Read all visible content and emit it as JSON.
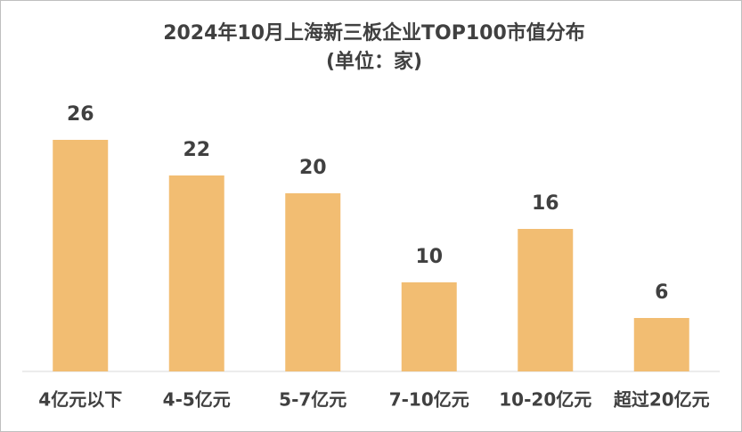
{
  "chart_data": {
    "type": "bar",
    "title": "2024年10月上海新三板企业TOP100市值分布",
    "subtitle": "(单位：家)",
    "categories": [
      "4亿元以下",
      "4-5亿元",
      "5-7亿元",
      "7-10亿元",
      "10-20亿元",
      "超过20亿元"
    ],
    "values": [
      26,
      22,
      20,
      10,
      16,
      6
    ],
    "color": "#f2bd72",
    "ylim": [
      0,
      30
    ]
  }
}
